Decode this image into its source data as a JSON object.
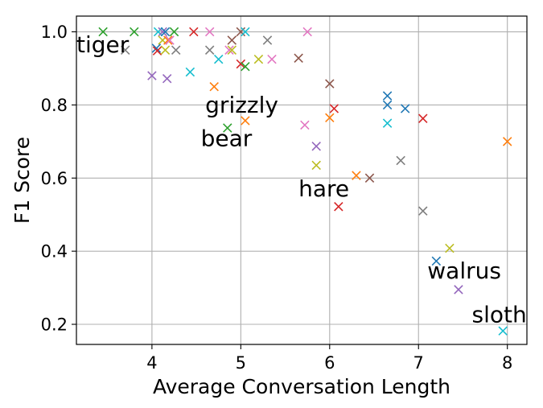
{
  "chart_data": {
    "type": "scatter",
    "xlabel": "Average Conversation Length",
    "ylabel": "F1 Score",
    "xlim": [
      3.15,
      8.22
    ],
    "ylim": [
      0.145,
      1.043
    ],
    "xticks": [
      4,
      5,
      6,
      7,
      8
    ],
    "yticks": [
      0.2,
      0.4,
      0.6,
      0.8,
      1.0
    ],
    "xtick_labels": [
      "4",
      "5",
      "6",
      "7",
      "8"
    ],
    "ytick_labels": [
      "0.2",
      "0.4",
      "0.6",
      "0.8",
      "1.0"
    ],
    "grid": true,
    "marker": "x",
    "colors": {
      "blue": "#1f77b4",
      "orange": "#ff7f0e",
      "green": "#2ca02c",
      "red": "#d62728",
      "purple": "#9467bd",
      "brown": "#8c564b",
      "pink": "#e377c2",
      "gray": "#7f7f7f",
      "olive": "#bcbd22",
      "cyan": "#17becf"
    },
    "points": [
      {
        "x": 3.45,
        "y": 1.0,
        "color": "green"
      },
      {
        "x": 3.8,
        "y": 1.0,
        "color": "green"
      },
      {
        "x": 4.07,
        "y": 1.0,
        "color": "cyan"
      },
      {
        "x": 4.12,
        "y": 1.0,
        "color": "purple"
      },
      {
        "x": 4.15,
        "y": 1.0,
        "color": "blue"
      },
      {
        "x": 4.25,
        "y": 1.0,
        "color": "green"
      },
      {
        "x": 4.47,
        "y": 1.0,
        "color": "red"
      },
      {
        "x": 4.65,
        "y": 1.0,
        "color": "pink"
      },
      {
        "x": 5.0,
        "y": 1.0,
        "color": "brown"
      },
      {
        "x": 5.05,
        "y": 1.0,
        "color": "cyan"
      },
      {
        "x": 5.75,
        "y": 1.0,
        "color": "pink"
      },
      {
        "x": 4.12,
        "y": 0.977,
        "color": "olive"
      },
      {
        "x": 4.18,
        "y": 0.977,
        "color": "orange"
      },
      {
        "x": 4.2,
        "y": 0.977,
        "color": "pink"
      },
      {
        "x": 4.9,
        "y": 0.977,
        "color": "brown"
      },
      {
        "x": 5.3,
        "y": 0.977,
        "color": "gray"
      },
      {
        "x": 3.7,
        "y": 0.95,
        "color": "gray"
      },
      {
        "x": 4.05,
        "y": 0.955,
        "color": "blue"
      },
      {
        "x": 4.06,
        "y": 0.948,
        "color": "red"
      },
      {
        "x": 4.15,
        "y": 0.95,
        "color": "olive"
      },
      {
        "x": 4.27,
        "y": 0.95,
        "color": "gray"
      },
      {
        "x": 4.65,
        "y": 0.95,
        "color": "gray"
      },
      {
        "x": 4.87,
        "y": 0.95,
        "color": "pink"
      },
      {
        "x": 4.9,
        "y": 0.95,
        "color": "olive"
      },
      {
        "x": 4.75,
        "y": 0.925,
        "color": "cyan"
      },
      {
        "x": 5.2,
        "y": 0.925,
        "color": "olive"
      },
      {
        "x": 5.35,
        "y": 0.925,
        "color": "pink"
      },
      {
        "x": 5.65,
        "y": 0.928,
        "color": "brown"
      },
      {
        "x": 5.0,
        "y": 0.912,
        "color": "red"
      },
      {
        "x": 5.05,
        "y": 0.905,
        "color": "green"
      },
      {
        "x": 4.43,
        "y": 0.89,
        "color": "cyan"
      },
      {
        "x": 4.0,
        "y": 0.88,
        "color": "purple"
      },
      {
        "x": 4.17,
        "y": 0.872,
        "color": "purple"
      },
      {
        "x": 6.0,
        "y": 0.858,
        "color": "brown"
      },
      {
        "x": 4.7,
        "y": 0.85,
        "color": "orange"
      },
      {
        "x": 6.65,
        "y": 0.825,
        "color": "blue"
      },
      {
        "x": 6.65,
        "y": 0.8,
        "color": "blue"
      },
      {
        "x": 6.85,
        "y": 0.79,
        "color": "blue"
      },
      {
        "x": 6.05,
        "y": 0.79,
        "color": "red"
      },
      {
        "x": 6.0,
        "y": 0.765,
        "color": "orange"
      },
      {
        "x": 7.05,
        "y": 0.763,
        "color": "red"
      },
      {
        "x": 5.05,
        "y": 0.757,
        "color": "orange"
      },
      {
        "x": 6.65,
        "y": 0.75,
        "color": "cyan"
      },
      {
        "x": 5.72,
        "y": 0.745,
        "color": "pink"
      },
      {
        "x": 4.85,
        "y": 0.737,
        "color": "green"
      },
      {
        "x": 8.0,
        "y": 0.7,
        "color": "orange"
      },
      {
        "x": 5.85,
        "y": 0.687,
        "color": "purple"
      },
      {
        "x": 6.8,
        "y": 0.648,
        "color": "gray"
      },
      {
        "x": 5.85,
        "y": 0.635,
        "color": "olive"
      },
      {
        "x": 6.3,
        "y": 0.607,
        "color": "orange"
      },
      {
        "x": 6.45,
        "y": 0.6,
        "color": "brown"
      },
      {
        "x": 6.1,
        "y": 0.522,
        "color": "red"
      },
      {
        "x": 7.05,
        "y": 0.51,
        "color": "gray"
      },
      {
        "x": 7.35,
        "y": 0.408,
        "color": "olive"
      },
      {
        "x": 7.2,
        "y": 0.373,
        "color": "blue"
      },
      {
        "x": 7.45,
        "y": 0.295,
        "color": "purple"
      },
      {
        "x": 7.95,
        "y": 0.182,
        "color": "cyan"
      }
    ],
    "annotations": [
      {
        "text": "tiger",
        "x": 3.15,
        "y": 0.944
      },
      {
        "text": "grizzly",
        "x": 4.6,
        "y": 0.779
      },
      {
        "text": "bear",
        "x": 4.55,
        "y": 0.688
      },
      {
        "text": "hare",
        "x": 5.65,
        "y": 0.55
      },
      {
        "text": "walrus",
        "x": 7.1,
        "y": 0.326
      },
      {
        "text": "sloth",
        "x": 7.6,
        "y": 0.205
      }
    ]
  }
}
